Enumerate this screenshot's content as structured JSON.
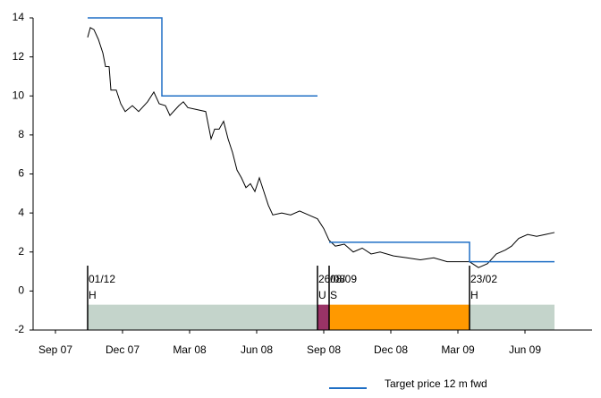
{
  "chart_data": {
    "type": "line",
    "xlim": [
      -1,
      24
    ],
    "xticks": [
      {
        "value": 0,
        "label": "Sep 07"
      },
      {
        "value": 3,
        "label": "Dec 07"
      },
      {
        "value": 6,
        "label": "Mar 08"
      },
      {
        "value": 9,
        "label": "Jun 08"
      },
      {
        "value": 12,
        "label": "Sep 08"
      },
      {
        "value": 15,
        "label": "Dec 08"
      },
      {
        "value": 18,
        "label": "Mar 09"
      },
      {
        "value": 21,
        "label": "Jun 09"
      }
    ],
    "ylim": [
      -2,
      14
    ],
    "yticks": [
      -2,
      0,
      2,
      4,
      6,
      8,
      10,
      12,
      14
    ],
    "series": [
      {
        "color": "#000000",
        "x": [
          1.44,
          1.56,
          1.72,
          1.92,
          2.12,
          2.24,
          2.4,
          2.48,
          2.72,
          2.92,
          3.12,
          3.44,
          3.72,
          4.12,
          4.4,
          4.64,
          4.92,
          5.12,
          5.52,
          5.72,
          5.92,
          6.32,
          6.72,
          6.96,
          7.12,
          7.32,
          7.52,
          7.72,
          7.92,
          8.12,
          8.32,
          8.52,
          8.72,
          8.92,
          9.12,
          9.32,
          9.52,
          9.72,
          10.12,
          10.52,
          10.92,
          11.32,
          11.72,
          12.0,
          12.24,
          12.52,
          12.92,
          13.32,
          13.72,
          14.12,
          14.52,
          15.12,
          15.72,
          16.32,
          16.92,
          17.52,
          18.12,
          18.52,
          18.92,
          19.32,
          19.72,
          20.12,
          20.4,
          20.72,
          21.12,
          21.52,
          21.92,
          22.32
        ],
        "values": [
          13.0,
          13.5,
          13.4,
          12.9,
          12.2,
          11.5,
          11.5,
          10.3,
          10.3,
          9.6,
          9.2,
          9.5,
          9.2,
          9.7,
          10.2,
          9.6,
          9.5,
          9.0,
          9.5,
          9.7,
          9.4,
          9.3,
          9.2,
          7.8,
          8.3,
          8.3,
          8.7,
          7.8,
          7.1,
          6.2,
          5.8,
          5.3,
          5.5,
          5.1,
          5.8,
          5.1,
          4.4,
          3.9,
          4.0,
          3.9,
          4.1,
          3.9,
          3.7,
          3.2,
          2.6,
          2.3,
          2.4,
          2.0,
          2.2,
          1.9,
          2.0,
          1.8,
          1.7,
          1.6,
          1.7,
          1.5,
          1.5,
          1.5,
          1.2,
          1.4,
          1.9,
          2.1,
          2.3,
          2.7,
          2.9,
          2.8,
          2.9,
          3.0
        ]
      },
      {
        "name": "Target price 12 m fwd",
        "color": "#1f6fc5",
        "x": [
          1.44,
          4.76,
          4.76,
          11.72,
          11.72,
          12.24,
          18.52,
          18.52,
          22.32
        ],
        "values": [
          14,
          14,
          10,
          10,
          null,
          2.5,
          2.5,
          1.5,
          1.5
        ]
      }
    ],
    "events": [
      {
        "x": 1.44,
        "date": "01/12",
        "rating": "H",
        "color": "#c4d4cb"
      },
      {
        "x": 11.72,
        "date": "26/08",
        "rating": "U",
        "color": "#993366"
      },
      {
        "x": 12.24,
        "date": "08/09",
        "rating": "S",
        "color": "#ff9900"
      },
      {
        "x": 18.52,
        "date": "23/02",
        "rating": "H",
        "color": "#c4d4cb"
      }
    ],
    "event_line_top": 1.3,
    "band_top": -0.7,
    "band_end": 22.32,
    "legend": "bottom-right"
  }
}
